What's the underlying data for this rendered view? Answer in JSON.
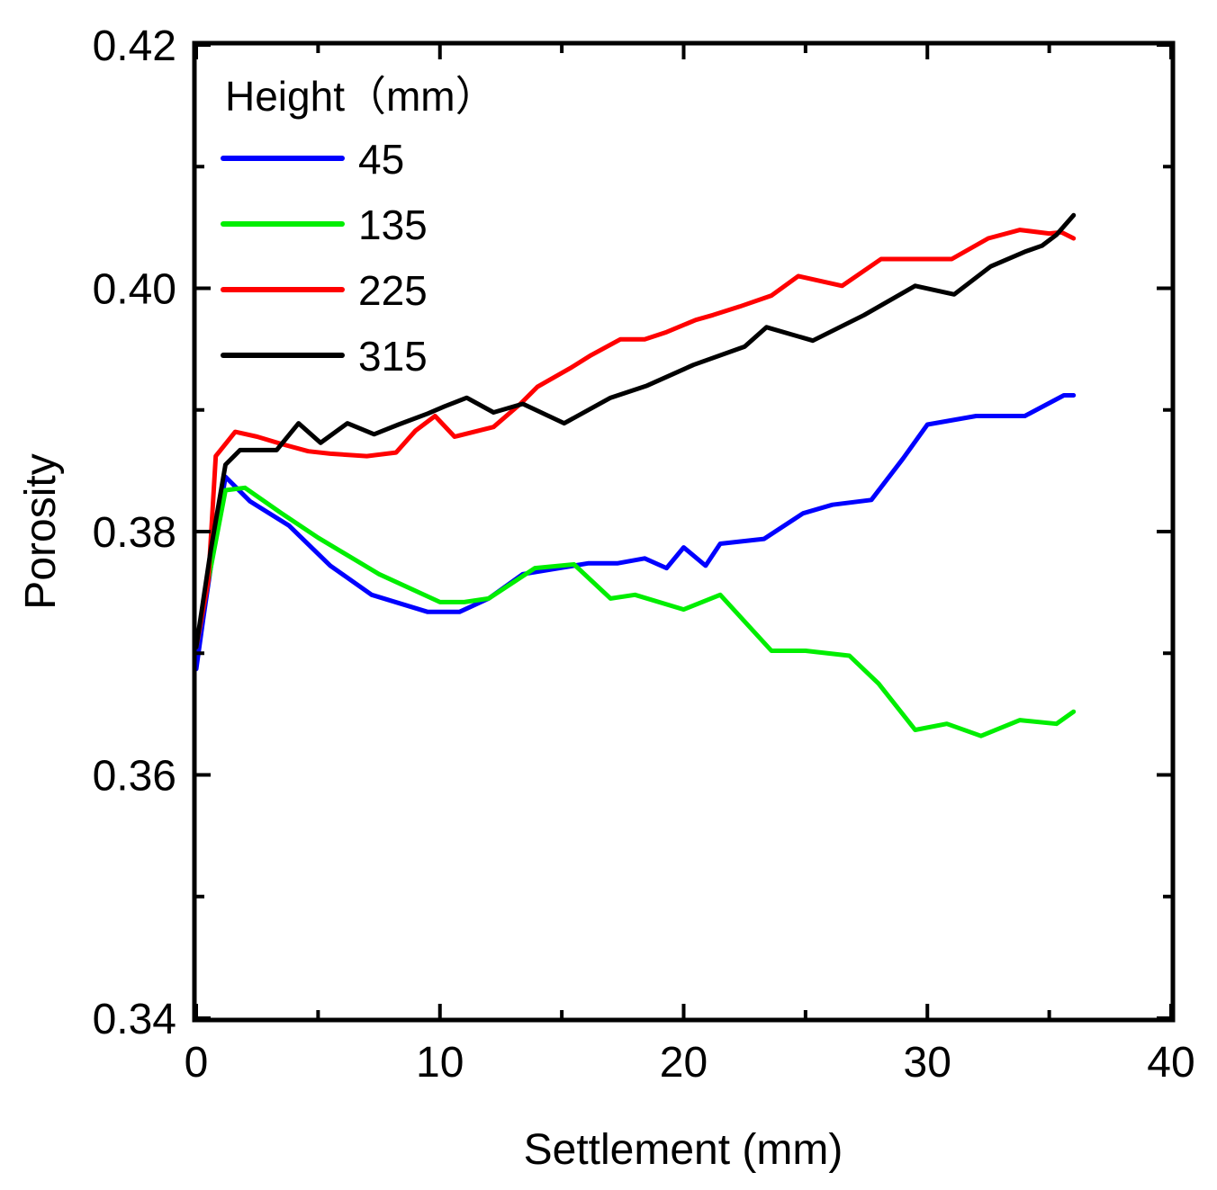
{
  "chart_data": {
    "type": "line",
    "title": "",
    "xlabel": "Settlement (mm)",
    "ylabel": "Porosity",
    "xlim": [
      0,
      40
    ],
    "ylim": [
      0.34,
      0.42
    ],
    "xticks": [
      0,
      10,
      20,
      30,
      40
    ],
    "xtick_labels": [
      "0",
      "10",
      "20",
      "30",
      "40"
    ],
    "yticks": [
      0.34,
      0.36,
      0.38,
      0.4,
      0.42
    ],
    "ytick_labels": [
      "0.34",
      "0.36",
      "0.38",
      "0.40",
      "0.42"
    ],
    "grid": false,
    "legend_title": "Height（mm）",
    "legend_position": "top-left",
    "series": [
      {
        "name": "45",
        "color": "#0000ff",
        "x": [
          0,
          0.3,
          0.7,
          1.2,
          2.2,
          3.8,
          5.5,
          7.2,
          9.5,
          10.8,
          12,
          13.4,
          15.5,
          16.1,
          17.3,
          18.4,
          19.3,
          20,
          20.9,
          21.5,
          23.3,
          24.9,
          26.1,
          27.7,
          29,
          30,
          32,
          34,
          35.6,
          36
        ],
        "y": [
          0.3687,
          0.373,
          0.3785,
          0.3845,
          0.3825,
          0.3805,
          0.3772,
          0.3748,
          0.3734,
          0.3734,
          0.3745,
          0.3765,
          0.3772,
          0.3774,
          0.3774,
          0.3778,
          0.377,
          0.3787,
          0.3772,
          0.379,
          0.3794,
          0.3815,
          0.3822,
          0.3826,
          0.386,
          0.3888,
          0.3895,
          0.3895,
          0.3912,
          0.3912
        ]
      },
      {
        "name": "135",
        "color": "#00ee00",
        "x": [
          0,
          0.5,
          1.2,
          2,
          3.5,
          5,
          7.5,
          10,
          11,
          12,
          13.9,
          15.5,
          17,
          18,
          20,
          21.5,
          23.6,
          25,
          26.8,
          28,
          29.5,
          30.8,
          32.2,
          33.8,
          35.3,
          36
        ],
        "y": [
          0.3705,
          0.376,
          0.3834,
          0.3836,
          0.3815,
          0.3795,
          0.3765,
          0.3742,
          0.3742,
          0.3745,
          0.377,
          0.3773,
          0.3745,
          0.3748,
          0.3736,
          0.3748,
          0.3702,
          0.3702,
          0.3698,
          0.3675,
          0.3637,
          0.3642,
          0.3632,
          0.3645,
          0.3642,
          0.3652
        ]
      },
      {
        "name": "225",
        "color": "#ff0000",
        "x": [
          0,
          0.5,
          0.8,
          1.6,
          2.5,
          3.5,
          4.6,
          5.5,
          7,
          8.2,
          9,
          9.8,
          10.6,
          12.2,
          13.3,
          14,
          15.4,
          16.2,
          17.4,
          18.4,
          19.3,
          20.5,
          21.2,
          22.3,
          23.6,
          24.7,
          26.5,
          28.1,
          29.6,
          31,
          32.5,
          33.8,
          35,
          35.5,
          36
        ],
        "y": [
          0.3705,
          0.376,
          0.3862,
          0.3882,
          0.3878,
          0.3872,
          0.3866,
          0.3864,
          0.3862,
          0.3865,
          0.3883,
          0.3895,
          0.3878,
          0.3886,
          0.3905,
          0.3919,
          0.3935,
          0.3945,
          0.3958,
          0.3958,
          0.3964,
          0.3974,
          0.3978,
          0.3985,
          0.3994,
          0.401,
          0.4002,
          0.4024,
          0.4024,
          0.4024,
          0.4041,
          0.4048,
          0.4045,
          0.4046,
          0.4041
        ]
      },
      {
        "name": "315",
        "color": "#000000",
        "x": [
          0,
          0.6,
          1.2,
          1.8,
          2.5,
          3.3,
          4.2,
          5.1,
          6.2,
          7.3,
          8.3,
          9.5,
          10.2,
          11.1,
          12.2,
          13.4,
          15.1,
          17,
          18.5,
          20.4,
          22.5,
          23.4,
          25.3,
          27.4,
          29.5,
          31.1,
          32.6,
          34,
          34.7,
          35.3,
          36
        ],
        "y": [
          0.3705,
          0.3785,
          0.3855,
          0.3867,
          0.3867,
          0.3867,
          0.3889,
          0.3873,
          0.3889,
          0.388,
          0.3888,
          0.3897,
          0.3903,
          0.391,
          0.3898,
          0.3905,
          0.3889,
          0.391,
          0.392,
          0.3937,
          0.3952,
          0.3968,
          0.3957,
          0.3978,
          0.4002,
          0.3995,
          0.4018,
          0.403,
          0.4035,
          0.4044,
          0.406
        ]
      }
    ]
  }
}
